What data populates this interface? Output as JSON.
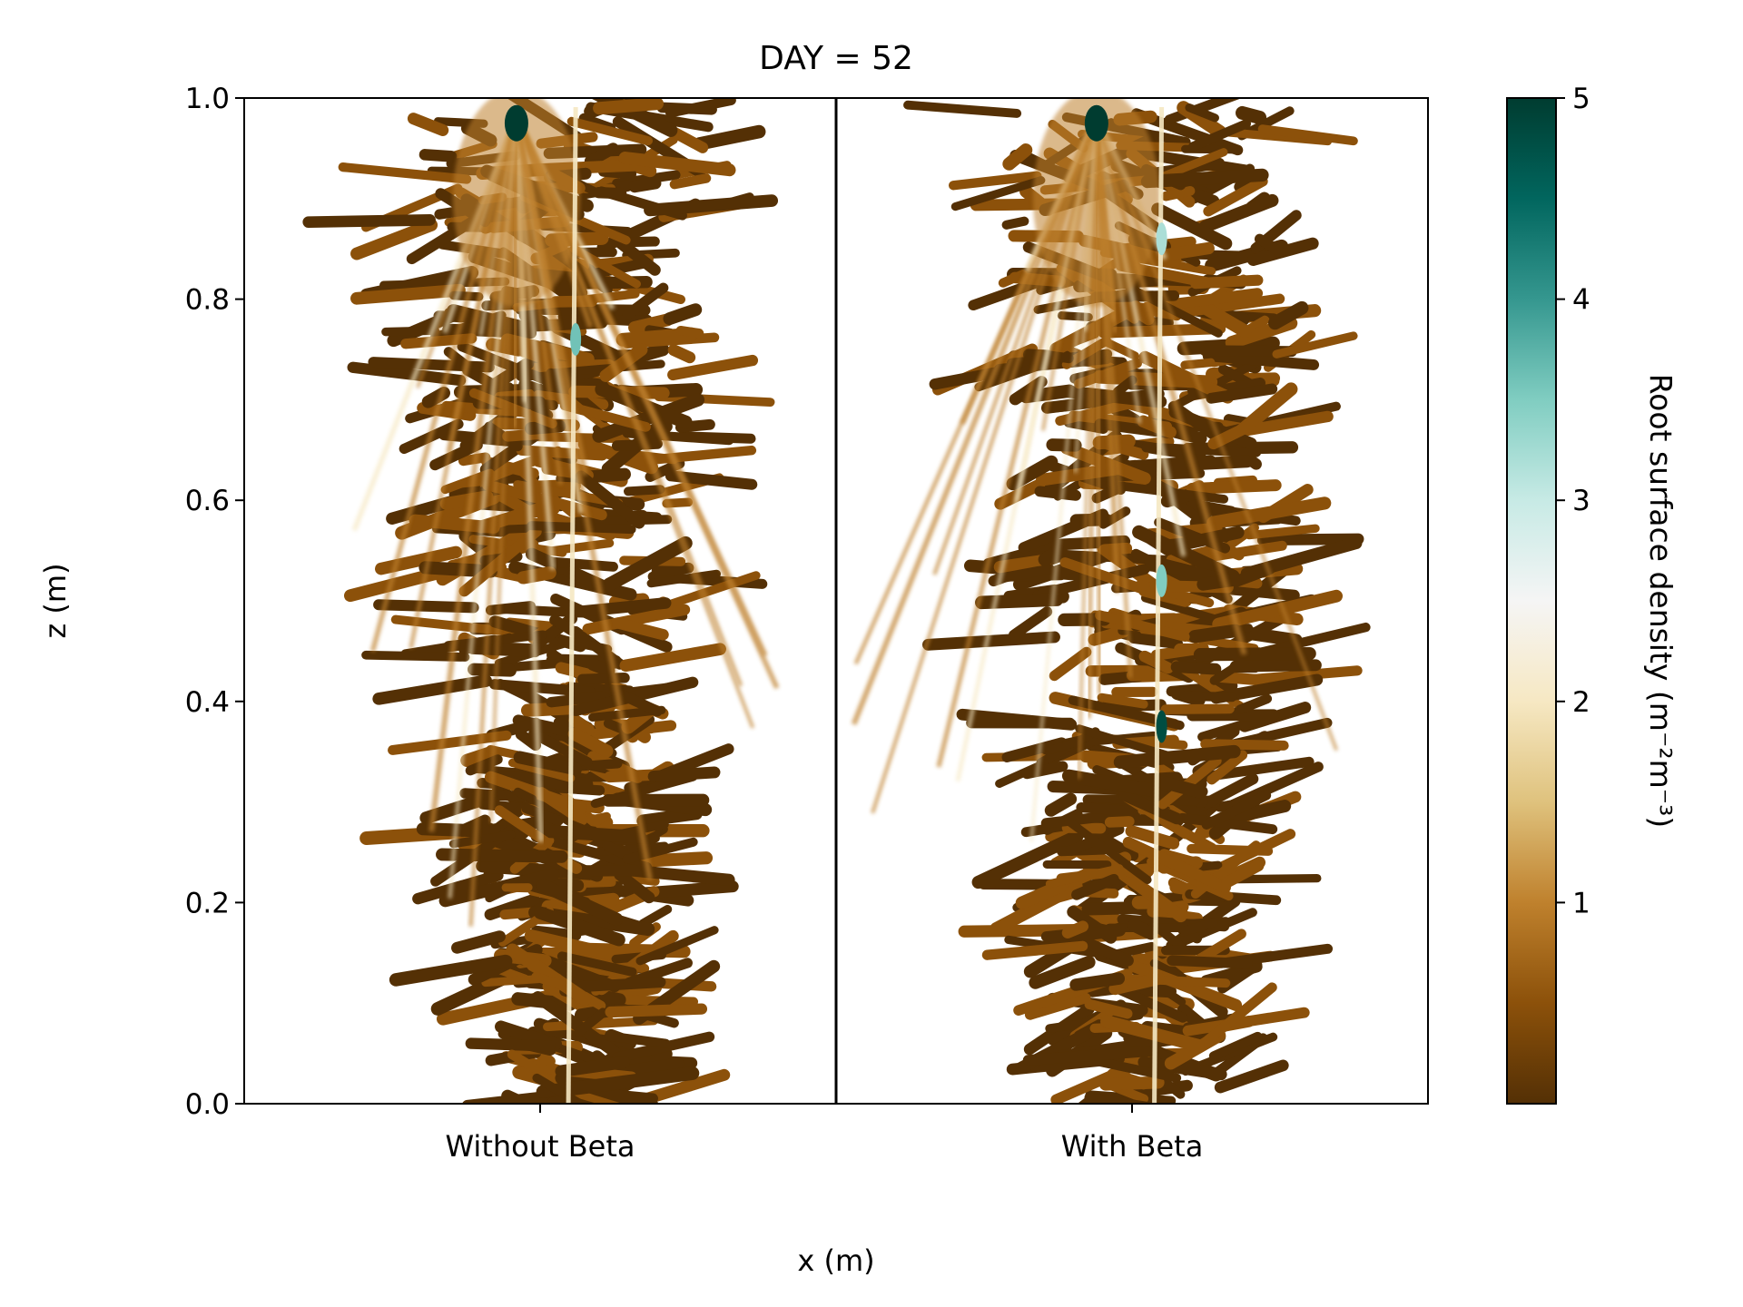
{
  "chart_data": {
    "type": "heatmap",
    "title": "DAY = 52",
    "xlabel": "x (m)",
    "ylabel": "z (m)",
    "ylim": [
      0.0,
      1.0
    ],
    "yticks": [
      "0.0",
      "0.2",
      "0.4",
      "0.6",
      "0.8",
      "1.0"
    ],
    "panels": [
      {
        "label": "Without Beta",
        "hotspots": [
          {
            "z": 0.975,
            "value": 5.0
          },
          {
            "z": 0.76,
            "value": 3.6
          }
        ]
      },
      {
        "label": "With Beta",
        "hotspots": [
          {
            "z": 0.975,
            "value": 5.0
          },
          {
            "z": 0.86,
            "value": 3.2
          },
          {
            "z": 0.52,
            "value": 3.5
          },
          {
            "z": 0.375,
            "value": 4.8
          }
        ]
      }
    ],
    "colorbar": {
      "label": "Root surface density (m⁻²m⁻³)",
      "range": [
        0,
        5
      ],
      "ticks": [
        "1",
        "2",
        "3",
        "4",
        "5"
      ],
      "colors": [
        "#543005",
        "#8c510a",
        "#bf812d",
        "#dfc27d",
        "#f6e8c3",
        "#f5f5f5",
        "#c7eae5",
        "#80cdc1",
        "#35978f",
        "#01665e",
        "#003c30"
      ]
    }
  }
}
